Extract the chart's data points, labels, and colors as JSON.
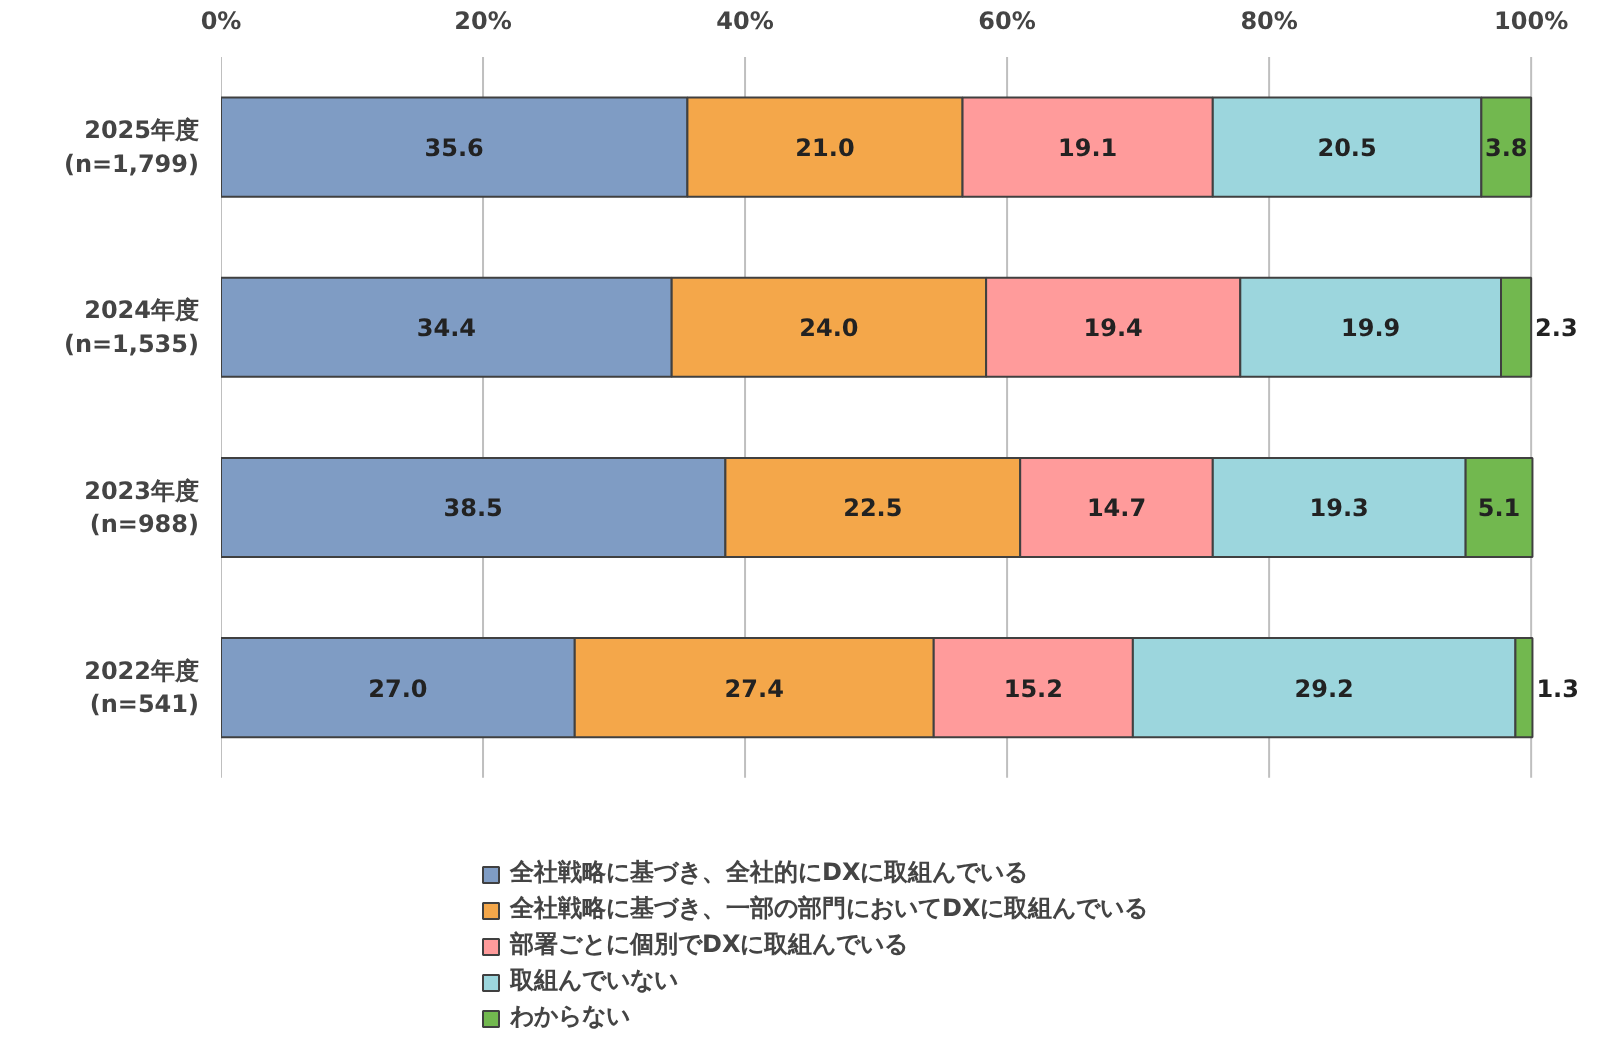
{
  "chart_data": {
    "type": "bar",
    "orientation": "horizontal",
    "stacked": true,
    "categories": [
      "2025年度\n(n=1,799)",
      "2024年度\n(n=1,535)",
      "2023年度\n(n=988)",
      "2022年度\n(n=541)"
    ],
    "series": [
      {
        "name": "全社戦略に基づき、全社的にDXに取組んでいる",
        "color": "#7f9cc4",
        "values": [
          35.6,
          34.4,
          38.5,
          27.0
        ],
        "value_labels": [
          "35.6",
          "34.4",
          "38.5",
          "27.0"
        ]
      },
      {
        "name": "全社戦略に基づき、一部の部門においてDXに取組んでいる",
        "color": "#f4a74a",
        "values": [
          21.0,
          24.0,
          22.5,
          27.4
        ],
        "value_labels": [
          "21.0",
          "24.0",
          "22.5",
          "27.4"
        ]
      },
      {
        "name": "部署ごとに個別でDXに取組んでいる",
        "color": "#ff9b9b",
        "values": [
          19.1,
          19.4,
          14.7,
          15.2
        ],
        "value_labels": [
          "19.1",
          "19.4",
          "14.7",
          "15.2"
        ]
      },
      {
        "name": "取組んでいない",
        "color": "#9cd6dd",
        "values": [
          20.5,
          19.9,
          19.3,
          29.2
        ],
        "value_labels": [
          "20.5",
          "19.9",
          "19.3",
          "29.2"
        ]
      },
      {
        "name": "わからない",
        "color": "#72b84f",
        "values": [
          3.8,
          2.3,
          5.1,
          1.3
        ],
        "value_labels": [
          "3.8",
          "2.3",
          "5.1",
          "1.3"
        ]
      }
    ],
    "xlim": [
      0,
      100
    ],
    "xticks": [
      {
        "value": 0,
        "label": "0%"
      },
      {
        "value": 20,
        "label": "20%"
      },
      {
        "value": 40,
        "label": "40%"
      },
      {
        "value": 60,
        "label": "60%"
      },
      {
        "value": 80,
        "label": "80%"
      },
      {
        "value": 100,
        "label": "100%"
      }
    ],
    "data_labels": true,
    "grid": "x",
    "legend": "bottom"
  }
}
